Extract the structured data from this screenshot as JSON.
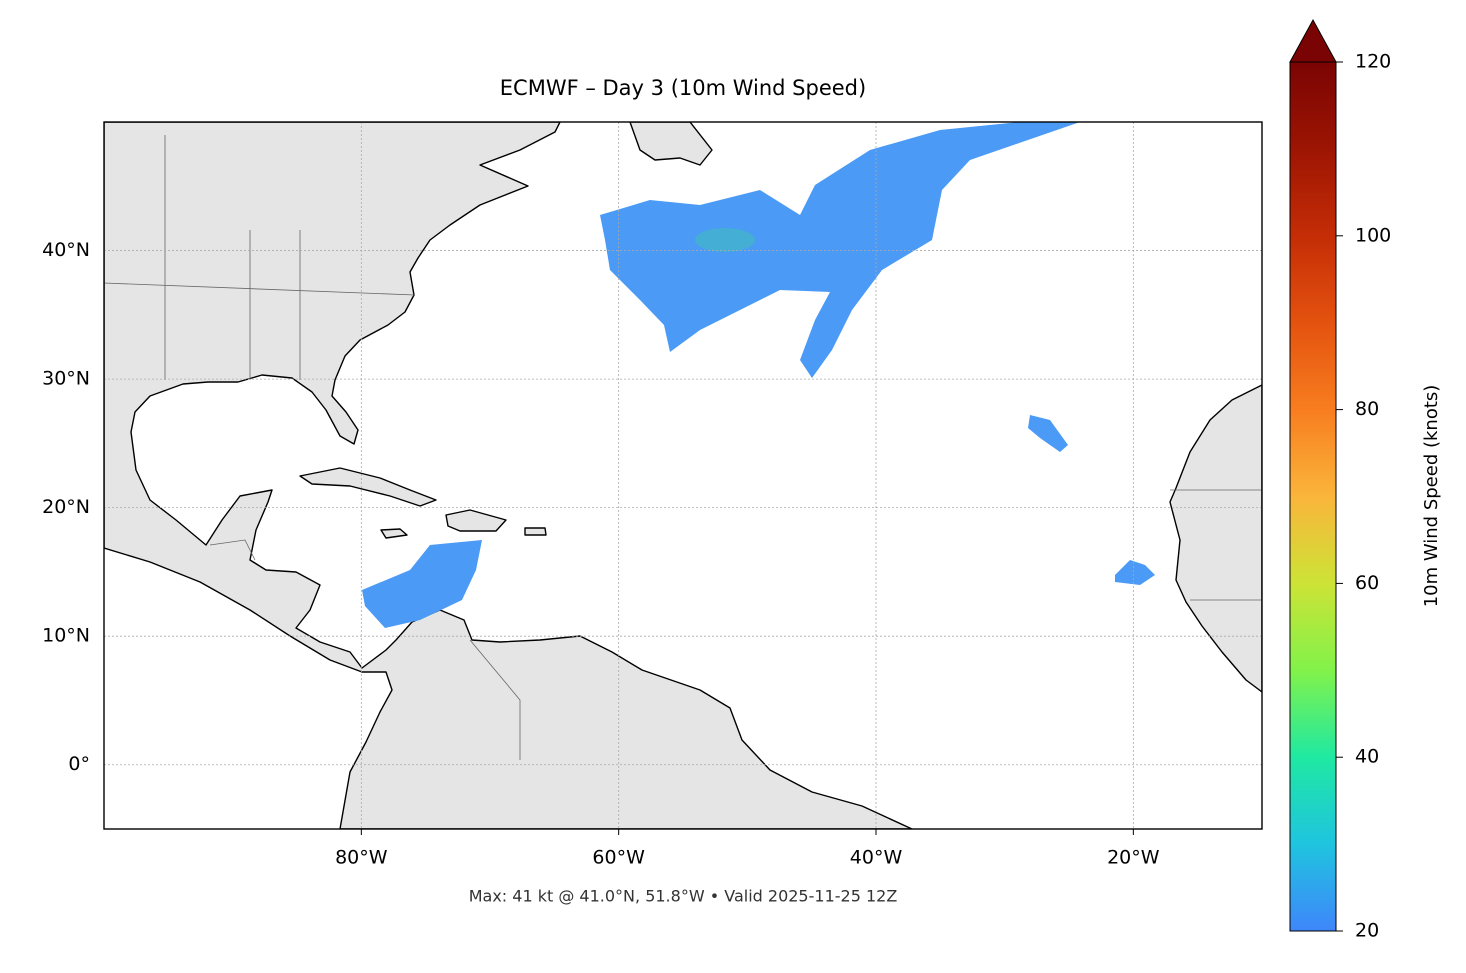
{
  "chart_data": {
    "type": "map",
    "title": "ECMWF – Day 3 (10m Wind Speed)",
    "footer": "Max: 41 kt @ 41.0°N, 51.8°W • Valid 2025-11-25 12Z",
    "xlim": [
      -100,
      -10
    ],
    "ylim": [
      -5,
      50
    ],
    "xticks": [
      {
        "value": -80,
        "label": "80°W"
      },
      {
        "value": -60,
        "label": "60°W"
      },
      {
        "value": -40,
        "label": "40°W"
      },
      {
        "value": -20,
        "label": "20°W"
      }
    ],
    "yticks": [
      {
        "value": 0,
        "label": "0°"
      },
      {
        "value": 10,
        "label": "10°N"
      },
      {
        "value": 20,
        "label": "20°N"
      },
      {
        "value": 30,
        "label": "30°N"
      },
      {
        "value": 40,
        "label": "40°N"
      }
    ],
    "grid": true,
    "colorbar": {
      "label": "10m Wind Speed (knots)",
      "lim": [
        20,
        120
      ],
      "ticks": [
        20,
        40,
        60,
        80,
        100,
        120
      ]
    }
  }
}
